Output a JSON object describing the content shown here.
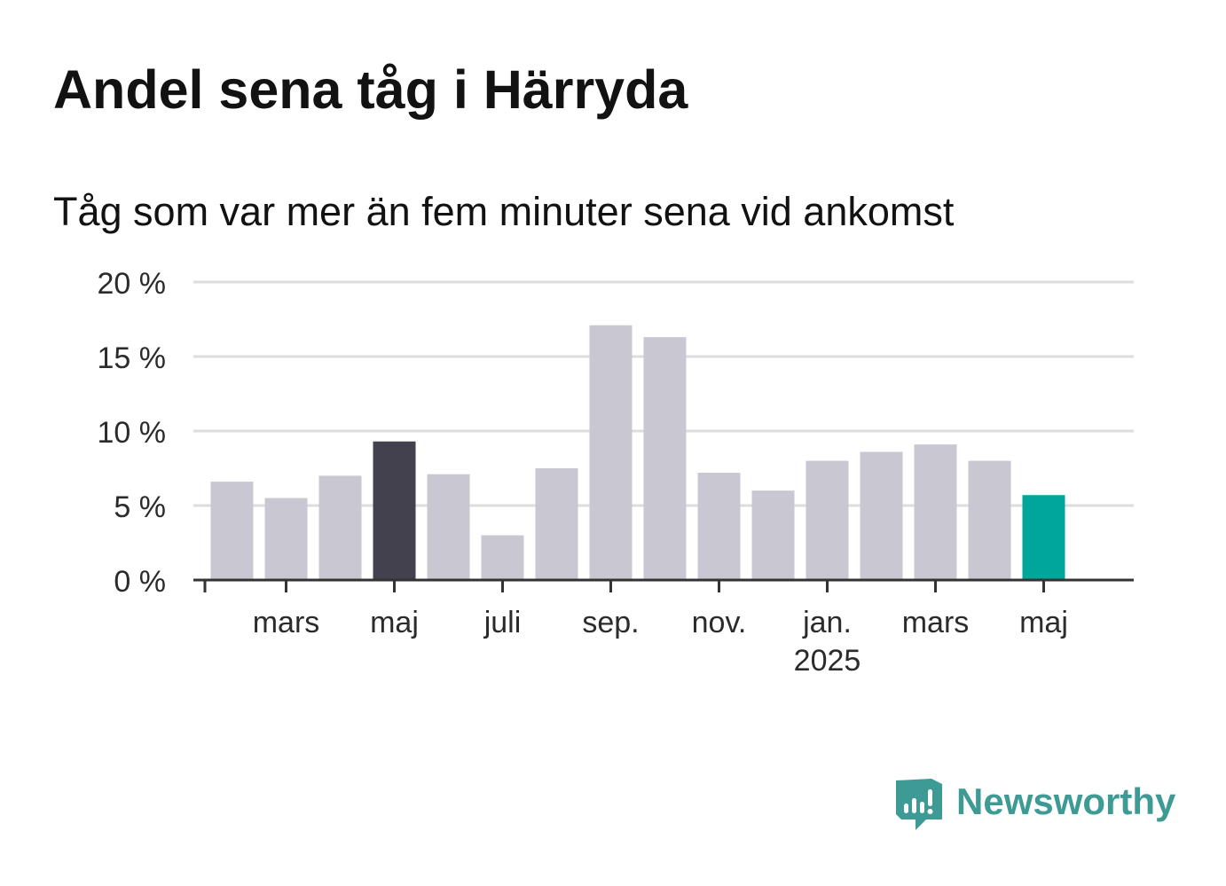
{
  "title": "Andel sena tåg i Härryda",
  "subtitle": "Tåg som var mer än fem minuter sena vid ankomst",
  "brand": {
    "name": "Newsworthy",
    "icon": "newsworthy-logo-icon"
  },
  "colors": {
    "bar_default": "#c8c7d2",
    "bar_highlight": "#43414d",
    "bar_latest": "#00a699",
    "grid": "#dddddd",
    "axis": "#333333",
    "brand": "#3e9a95"
  },
  "chart_data": {
    "type": "bar",
    "unit": "%",
    "ylim": [
      0,
      20
    ],
    "yticks": [
      0,
      5,
      10,
      15,
      20
    ],
    "ytick_labels": [
      "0 %",
      "5 %",
      "10 %",
      "15 %",
      "20 %"
    ],
    "grid": true,
    "months": [
      "2024-02",
      "2024-03",
      "2024-04",
      "2024-05",
      "2024-06",
      "2024-07",
      "2024-08",
      "2024-09",
      "2024-10",
      "2024-11",
      "2024-12",
      "2025-01",
      "2025-02",
      "2025-03",
      "2025-04",
      "2025-05"
    ],
    "values": [
      6.6,
      5.5,
      7.0,
      9.3,
      7.1,
      3.0,
      7.5,
      17.1,
      16.3,
      7.2,
      6.0,
      8.0,
      8.6,
      9.1,
      8.0,
      5.7
    ],
    "highlight": {
      "2024-05": "bar_highlight",
      "2025-05": "bar_latest"
    },
    "xtick_labels": [
      {
        "month": "2024-03",
        "label": "mars"
      },
      {
        "month": "2024-05",
        "label": "maj"
      },
      {
        "month": "2024-07",
        "label": "juli"
      },
      {
        "month": "2024-09",
        "label": "sep."
      },
      {
        "month": "2024-11",
        "label": "nov."
      },
      {
        "month": "2025-01",
        "label": "jan.",
        "sublabel": "2025"
      },
      {
        "month": "2025-03",
        "label": "mars"
      },
      {
        "month": "2025-05",
        "label": "maj"
      }
    ]
  }
}
